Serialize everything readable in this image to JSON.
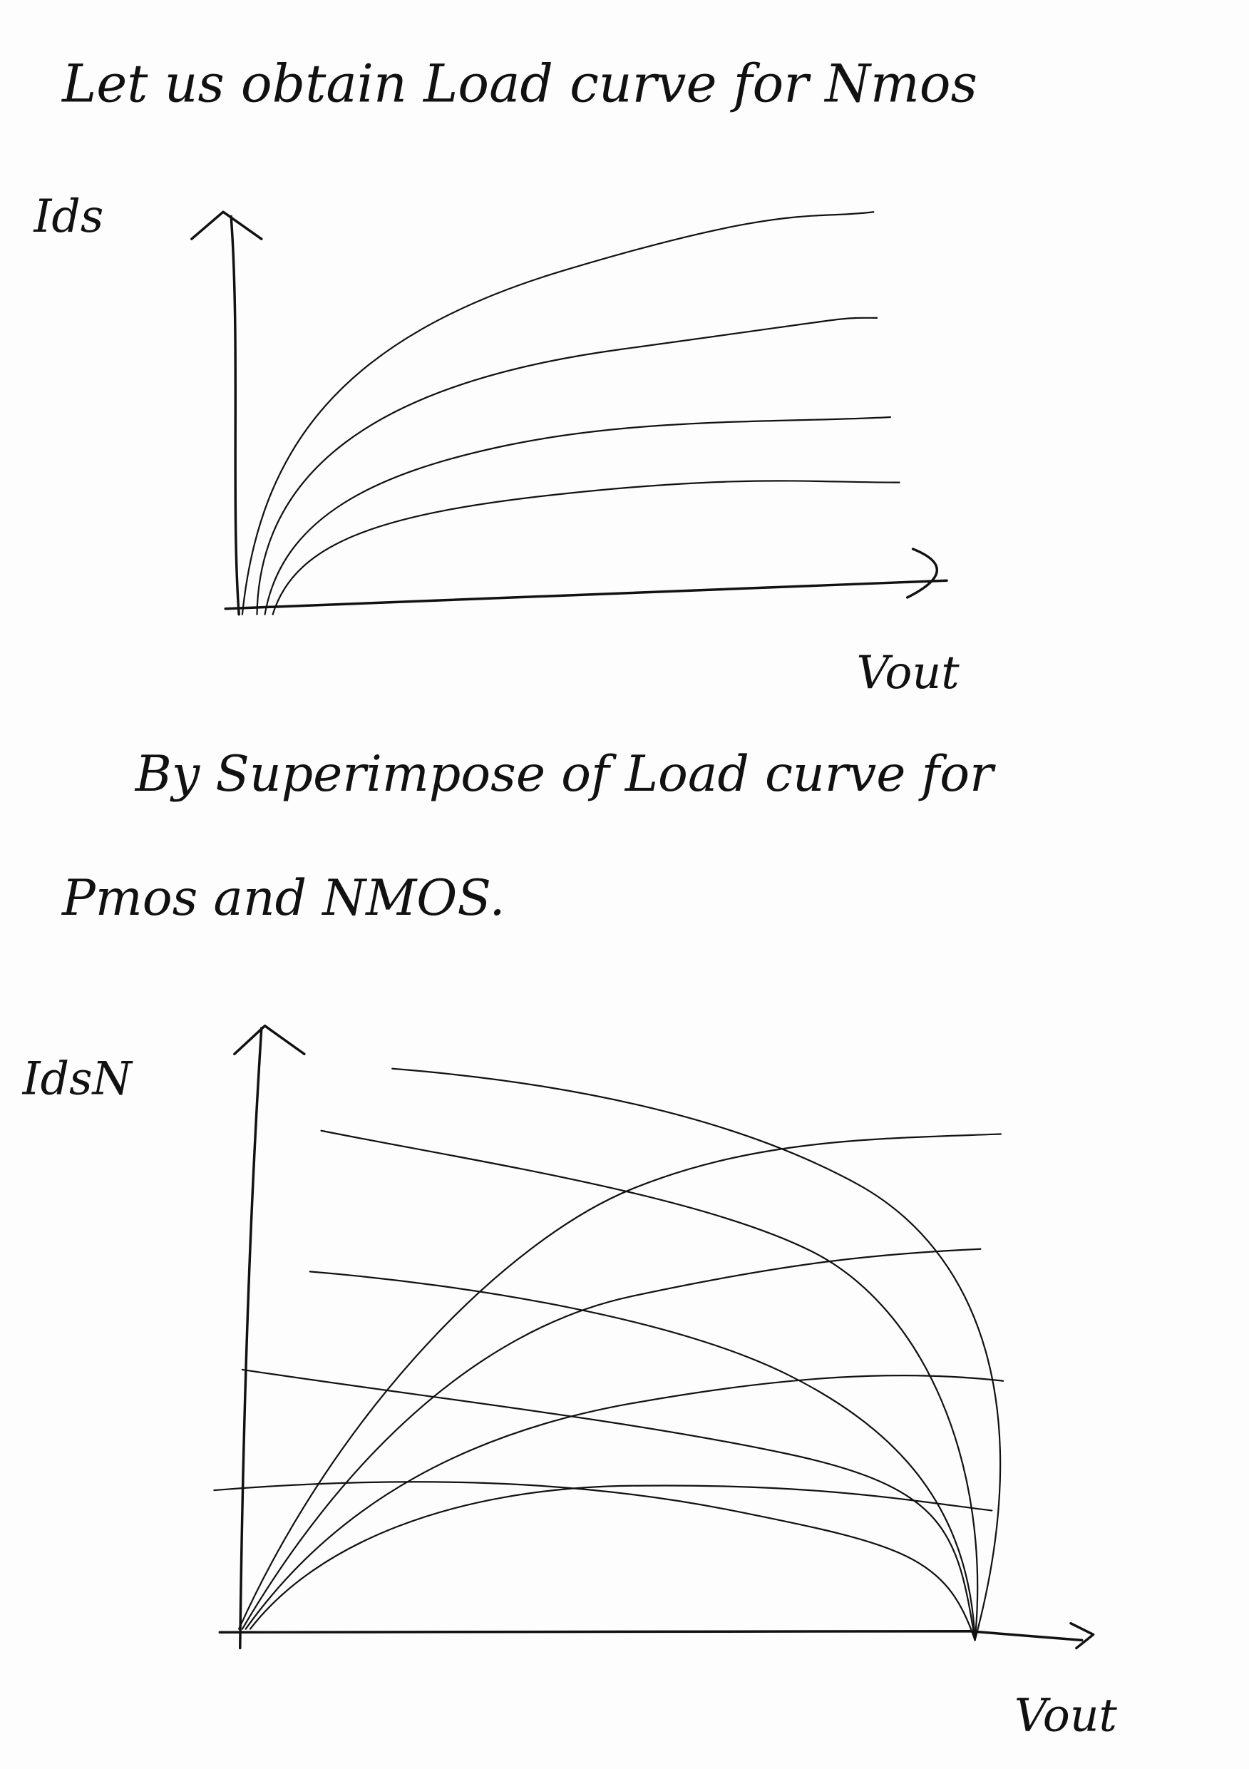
{
  "header": {
    "title": "Let us obtain Load curve for Nmos"
  },
  "graph1": {
    "y_label": "Ids",
    "x_label": "Vout"
  },
  "paragraph": {
    "line1": "By Superimpose of Load curve for",
    "line2": "Pmos and NMOS."
  },
  "graph2": {
    "y_label": "IdsN",
    "x_label": "Vout"
  }
}
